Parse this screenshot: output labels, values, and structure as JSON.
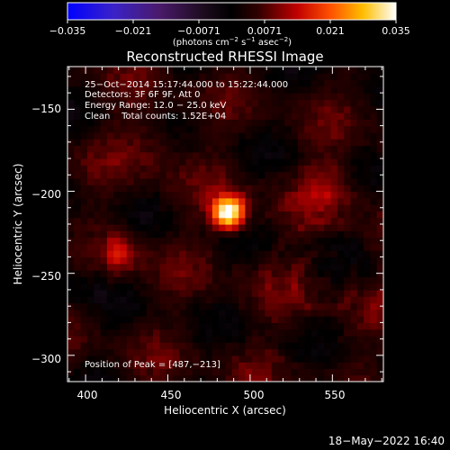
{
  "colorbar": {
    "ticks": [
      "−0.035",
      "−0.021",
      "−0.0071",
      "0.0071",
      "0.021",
      "0.035"
    ],
    "units_base": "(photons cm",
    "units_exp1": "−2",
    "units_mid": " s",
    "units_exp2": "−1",
    "units_end": " asec",
    "units_exp3": "−2",
    "units_close": ")"
  },
  "title": "Reconstructed RHESSI Image",
  "info": {
    "line1": "25−Oct−2014 15:17:44.000 to 15:22:44.000",
    "line2": "Detectors: 3F 6F 9F, Att 0",
    "line3": "Energy Range: 12.0 − 25.0 keV",
    "line4": "Clean    Total counts: 1.52E+04",
    "peak": "Position of Peak = [487,−213]"
  },
  "axes": {
    "xlabel": "Heliocentric X (arcsec)",
    "ylabel": "Heliocentric Y (arcsec)",
    "xticks": [
      "400",
      "450",
      "500",
      "550"
    ],
    "yticks": [
      "−150",
      "−200",
      "−250",
      "−300"
    ]
  },
  "footer": {
    "timestamp": "18−May−2022 16:40"
  },
  "colors": {
    "background": "#000000",
    "axis": "#ffffff",
    "bright": "#ffff80",
    "dark": "#220000"
  },
  "chart_data": {
    "type": "heatmap",
    "title": "Reconstructed RHESSI Image",
    "xlabel": "Heliocentric X (arcsec)",
    "ylabel": "Heliocentric Y (arcsec)",
    "xlim": [
      389,
      581
    ],
    "ylim": [
      -316,
      -124
    ],
    "x_ticks": [
      400,
      450,
      500,
      550
    ],
    "y_ticks": [
      -150,
      -200,
      -250,
      -300
    ],
    "colorbar": {
      "range": [
        -0.035,
        0.035
      ],
      "ticks": [
        -0.035,
        -0.021,
        -0.0071,
        0.0071,
        0.021,
        0.035
      ],
      "colormap": "blue-purple-black-red-orange-yellow-white"
    },
    "grid_resolution_arcsec": 4,
    "peak": {
      "x": 487,
      "y": -213,
      "value": 0.035
    },
    "sources": [
      {
        "x": 487,
        "y": -213,
        "sigma": 7,
        "amplitude": 0.035
      },
      {
        "x": 420,
        "y": -237,
        "sigma": 9,
        "amplitude": 0.011
      },
      {
        "x": 548,
        "y": -196,
        "sigma": 12,
        "amplitude": 0.007
      },
      {
        "x": 440,
        "y": -170,
        "sigma": 14,
        "amplitude": 0.005
      }
    ]
  }
}
